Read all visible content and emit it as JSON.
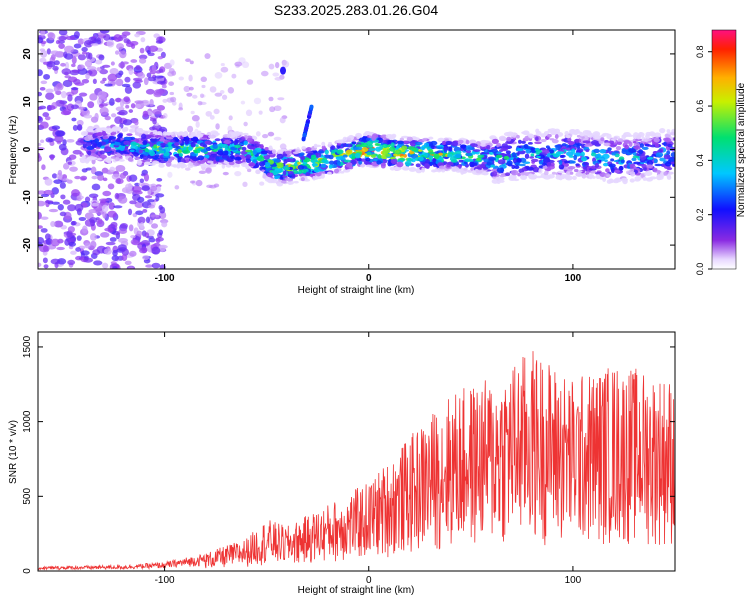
{
  "title": "S233.2025.283.01.26.G04",
  "chart_data": [
    {
      "type": "heatmap",
      "xlabel": "Height of straight line (km)",
      "ylabel": "Frequency (Hz)",
      "xlim": [
        -162,
        150
      ],
      "ylim": [
        -25,
        25
      ],
      "xticks": [
        -100,
        0,
        100
      ],
      "xtick_labels": [
        "-100",
        "0",
        "100"
      ],
      "yticks": [
        -20,
        -10,
        0,
        10,
        20
      ],
      "ytick_labels": [
        "-20",
        "-10",
        "0",
        "10",
        "20"
      ],
      "colorbar": {
        "label": "Normalized spectral amplitude",
        "range": [
          0.0,
          0.88
        ],
        "ticks": [
          0.0,
          0.2,
          0.4,
          0.6,
          0.8
        ],
        "tick_labels": [
          "0.0",
          "0.2",
          "0.4",
          "0.6",
          "0.8"
        ]
      },
      "ridge": {
        "description_points_x": [
          -140,
          -120,
          -100,
          -80,
          -60,
          -45,
          -30,
          -10,
          0,
          20,
          40,
          60,
          80,
          100,
          120,
          145
        ],
        "description_points_y": [
          1,
          1,
          0,
          0,
          0,
          -4,
          -3,
          -1,
          0,
          -1,
          -1,
          -2,
          -1,
          -1,
          -2,
          -1
        ],
        "peak_amplitude": [
          0.3,
          0.45,
          0.6,
          0.55,
          0.5,
          0.7,
          0.7,
          0.75,
          0.85,
          0.8,
          0.65,
          0.5,
          0.45,
          0.4,
          0.45,
          0.4
        ]
      }
    },
    {
      "type": "line",
      "xlabel": "Height of straight line (km)",
      "ylabel": "SNR (10 * v/v)",
      "xlim": [
        -162,
        150
      ],
      "ylim": [
        0,
        1600
      ],
      "xticks": [
        -100,
        0,
        100
      ],
      "xtick_labels": [
        "-100",
        "0",
        "100"
      ],
      "yticks": [
        0,
        500,
        1000,
        1500
      ],
      "ytick_labels": [
        "0",
        "500",
        "1000",
        "1500"
      ],
      "color": "#ee3333",
      "envelope_x": [
        -162,
        -120,
        -100,
        -80,
        -60,
        -50,
        -40,
        -20,
        0,
        20,
        40,
        60,
        80,
        100,
        120,
        150
      ],
      "envelope_y": [
        30,
        40,
        60,
        120,
        220,
        350,
        300,
        450,
        600,
        900,
        1200,
        1300,
        1500,
        1300,
        1400,
        1300
      ]
    }
  ]
}
